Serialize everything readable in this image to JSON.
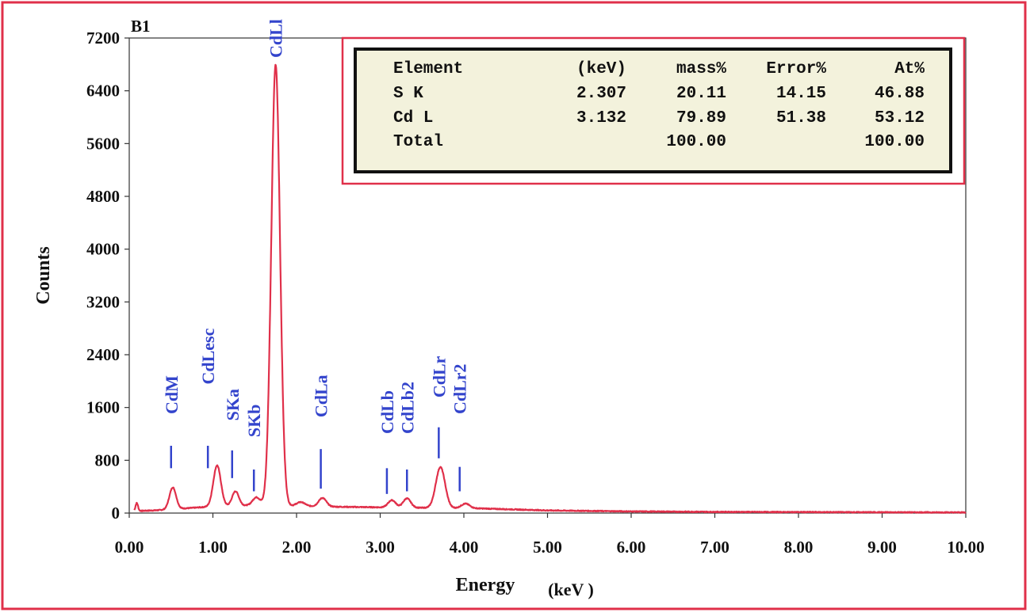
{
  "panel_label": "B1",
  "table": {
    "headers": [
      "Element",
      "(keV)",
      "mass%",
      "Error%",
      "At%"
    ],
    "rows": [
      [
        "S  K",
        "2.307",
        "20.11",
        "14.15",
        "46.88"
      ],
      [
        "Cd L",
        "3.132",
        "79.89",
        "51.38",
        "53.12"
      ],
      [
        "Total",
        "",
        "100.00",
        "",
        "100.00"
      ]
    ]
  },
  "colors": {
    "frame": "#e0304a",
    "spectrum": "#e0304a",
    "labels": "#3344cc",
    "table_bg": "#f3f2dc"
  },
  "chart_data": {
    "type": "line",
    "title": "",
    "xlabel": "Energy",
    "xlabel_unit": "(keV )",
    "ylabel": "Counts",
    "xlim": [
      0,
      10
    ],
    "ylim": [
      0,
      7200
    ],
    "x_ticks": [
      "0.00",
      "1.00",
      "2.00",
      "3.00",
      "4.00",
      "5.00",
      "6.00",
      "7.00",
      "8.00",
      "9.00",
      "10.00"
    ],
    "y_ticks": [
      "0",
      "800",
      "1600",
      "2400",
      "3200",
      "4000",
      "4800",
      "5600",
      "6400",
      "7200"
    ],
    "series": [
      {
        "baseline": [
          [
            0.05,
            30
          ],
          [
            0.3,
            40
          ],
          [
            1.0,
            100
          ],
          [
            1.5,
            120
          ],
          [
            1.9,
            110
          ],
          [
            2.5,
            95
          ],
          [
            3.5,
            80
          ],
          [
            4.2,
            70
          ],
          [
            5.0,
            40
          ],
          [
            6.0,
            25
          ],
          [
            7.0,
            18
          ],
          [
            8.0,
            15
          ],
          [
            9.0,
            12
          ],
          [
            10.0,
            10
          ]
        ],
        "peaks": [
          {
            "x": 0.09,
            "height": 120,
            "width": 0.015
          },
          {
            "x": 0.52,
            "height": 330,
            "width": 0.04
          },
          {
            "x": 1.05,
            "height": 620,
            "width": 0.045
          },
          {
            "x": 1.27,
            "height": 220,
            "width": 0.04
          },
          {
            "x": 1.52,
            "height": 120,
            "width": 0.045
          },
          {
            "x": 1.75,
            "height": 6680,
            "width": 0.052
          },
          {
            "x": 2.05,
            "height": 60,
            "width": 0.05
          },
          {
            "x": 2.31,
            "height": 130,
            "width": 0.045
          },
          {
            "x": 3.14,
            "height": 110,
            "width": 0.045
          },
          {
            "x": 3.32,
            "height": 140,
            "width": 0.045
          },
          {
            "x": 3.72,
            "height": 620,
            "width": 0.055
          },
          {
            "x": 4.02,
            "height": 70,
            "width": 0.05
          }
        ]
      }
    ],
    "annotations": [
      {
        "label": "CdM",
        "x": 0.5,
        "marker_top": 1020,
        "marker_bottom": 680,
        "text_y": 1500,
        "rotate": true
      },
      {
        "label": "CdLesc",
        "x": 0.94,
        "marker_top": 1020,
        "marker_bottom": 680,
        "text_y": 1950,
        "rotate": true
      },
      {
        "label": "SKa",
        "x": 1.23,
        "marker_top": 950,
        "marker_bottom": 530,
        "text_y": 1400,
        "rotate": true
      },
      {
        "label": "SKb",
        "x": 1.49,
        "marker_top": 660,
        "marker_bottom": 330,
        "text_y": 1150,
        "rotate": true
      },
      {
        "label": "CdLl",
        "x": 1.75,
        "marker_top": null,
        "marker_bottom": null,
        "text_y": 6900,
        "rotate": true
      },
      {
        "label": "CdLa",
        "x": 2.29,
        "marker_top": 970,
        "marker_bottom": 370,
        "text_y": 1450,
        "rotate": true
      },
      {
        "label": "CdLb",
        "x": 3.08,
        "marker_top": 680,
        "marker_bottom": 290,
        "text_y": 1200,
        "rotate": true
      },
      {
        "label": "CdLb2",
        "x": 3.32,
        "marker_top": 660,
        "marker_bottom": 330,
        "text_y": 1200,
        "rotate": true
      },
      {
        "label": "CdLr",
        "x": 3.7,
        "marker_top": 1300,
        "marker_bottom": 830,
        "text_y": 1750,
        "rotate": true
      },
      {
        "label": "CdLr2",
        "x": 3.95,
        "marker_top": 700,
        "marker_bottom": 330,
        "text_y": 1500,
        "rotate": true
      }
    ]
  }
}
